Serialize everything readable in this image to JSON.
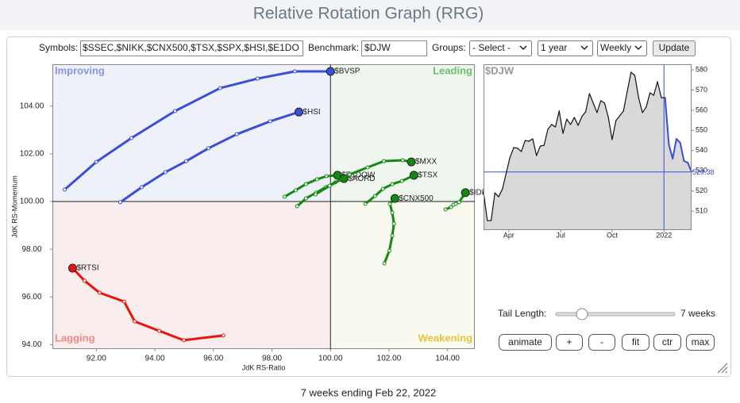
{
  "header": {
    "title": "Relative Rotation Graph (RRG)"
  },
  "form": {
    "symbols_label": "Symbols:",
    "symbols_value": "$SSEC,$NIKK,$CNX500,$TSX,$SPX,$HSI,$E1DO",
    "benchmark_label": "Benchmark:",
    "benchmark_value": "$DJW",
    "groups_label": "Groups:",
    "groups_value": "- Select -",
    "period_value": "1 year",
    "frequency_value": "Weekly",
    "update_button": "Update"
  },
  "chart_data": [
    {
      "type": "scatter",
      "xlabel": "JdK RS-Ratio",
      "ylabel": "JdK RS-Momentum",
      "quadrants": [
        "Improving",
        "Leading",
        "Lagging",
        "Weakening"
      ],
      "quadrant_colors": [
        "#eef0fa",
        "#eef6ed",
        "#f9ecec",
        "#f9f9ef"
      ],
      "quadrant_label_colors": [
        "#8a94e0",
        "#6cbf6c",
        "#f08a8a",
        "#e6c53a"
      ],
      "center": [
        100,
        100
      ],
      "xlim": [
        90.5,
        104.93
      ],
      "ylim": [
        93.82,
        105.75
      ],
      "xticks": [
        {
          "value": 92,
          "label": "92.00"
        },
        {
          "value": 94,
          "label": "94.00"
        },
        {
          "value": 96,
          "label": "96.00"
        },
        {
          "value": 98,
          "label": "98.00"
        },
        {
          "value": 100,
          "label": "100.00"
        },
        {
          "value": 102,
          "label": "102.00"
        },
        {
          "value": 104,
          "label": "104.00"
        }
      ],
      "yticks": [
        {
          "value": 94,
          "label": "94.00"
        },
        {
          "value": 96,
          "label": "96.00"
        },
        {
          "value": 98,
          "label": "98.00"
        },
        {
          "value": 100,
          "label": "100.00"
        },
        {
          "value": 102,
          "label": "102.00"
        },
        {
          "value": 104,
          "label": "104.00"
        }
      ],
      "series": [
        {
          "name": "$BVSP",
          "color": "#3a4fd6",
          "x": [
            90.92,
            92.0,
            93.2,
            94.69,
            96.23,
            97.51,
            98.78,
            100.0
          ],
          "values": [
            100.5,
            101.66,
            102.66,
            103.79,
            104.75,
            105.15,
            105.45,
            105.45
          ]
        },
        {
          "name": "$HSI",
          "color": "#3a4fd6",
          "x": [
            92.82,
            93.55,
            94.36,
            95.07,
            95.83,
            96.8,
            97.94,
            98.92
          ],
          "values": [
            99.97,
            100.6,
            101.23,
            101.69,
            102.23,
            102.82,
            103.36,
            103.75
          ]
        },
        {
          "name": "$RTSI",
          "color": "#e8140c",
          "x": [
            96.34,
            94.99,
            94.15,
            93.31,
            92.95,
            92.11,
            91.6,
            91.19
          ],
          "values": [
            94.39,
            94.19,
            94.58,
            94.98,
            95.81,
            96.18,
            96.68,
            97.21
          ]
        },
        {
          "name": "$E1DOW",
          "color": "#128a12",
          "x": [
            98.43,
            98.81,
            99.16,
            99.54,
            99.86,
            100.24
          ],
          "values": [
            100.2,
            100.47,
            100.73,
            100.93,
            101.06,
            101.1
          ]
        },
        {
          "name": "$AORD",
          "color": "#128a12",
          "x": [
            98.86,
            99.16,
            99.51,
            99.84,
            100.16,
            100.46
          ],
          "values": [
            99.8,
            100.13,
            100.37,
            100.6,
            100.8,
            100.96
          ]
        },
        {
          "name": "$MXX",
          "color": "#128a12",
          "x": [
            99.49,
            99.97,
            100.65,
            101.27,
            101.82,
            102.47,
            102.76
          ],
          "values": [
            100.3,
            100.66,
            101.13,
            101.43,
            101.69,
            101.73,
            101.66
          ]
        },
        {
          "name": "$TSX",
          "color": "#128a12",
          "x": [
            101.19,
            101.52,
            101.79,
            102.11,
            102.44,
            102.85
          ],
          "values": [
            99.9,
            100.23,
            100.53,
            100.73,
            100.86,
            101.1
          ]
        },
        {
          "name": "$CNX500",
          "color": "#128a12",
          "x": [
            101.84,
            102.01,
            102.11,
            102.17,
            102.11,
            102.03,
            102.2
          ],
          "values": [
            97.41,
            97.94,
            98.57,
            99.07,
            99.53,
            99.9,
            100.13
          ]
        },
        {
          "name": "$IDDOW",
          "color": "#128a12",
          "x": [
            103.93,
            104.12,
            104.2,
            104.28,
            104.39,
            104.61
          ],
          "values": [
            99.67,
            99.77,
            99.87,
            99.9,
            99.97,
            100.37
          ]
        }
      ]
    },
    {
      "type": "line",
      "title": "$DJW",
      "color": "#111111",
      "tail_color": "#3a4fd6",
      "tail_length": 7,
      "area_color": "#d9d9d9",
      "xlim": [
        0,
        55
      ],
      "ylim": [
        500.6,
        582.75
      ],
      "xticks": [
        {
          "value": 6.7,
          "label": "Apr"
        },
        {
          "value": 20.4,
          "label": "Jul"
        },
        {
          "value": 34.0,
          "label": "Oct"
        },
        {
          "value": 47.7,
          "label": "2022"
        }
      ],
      "yticks": [
        510,
        520,
        530,
        540,
        550,
        560,
        570,
        580
      ],
      "values": [
        519.4,
        505.3,
        505.3,
        519.0,
        517.1,
        521.0,
        528.9,
        536.7,
        541.5,
        541.1,
        539.5,
        545.0,
        544.6,
        545.8,
        537.5,
        542.2,
        542.6,
        550.5,
        552.9,
        551.7,
        559.6,
        548.5,
        555.6,
        552.9,
        556.4,
        552.5,
        556.8,
        559.2,
        568.2,
        563.5,
        558.8,
        564.7,
        563.5,
        556.4,
        545.4,
        554.8,
        557.2,
        559.6,
        569.4,
        578.8,
        577.2,
        566.2,
        558.8,
        561.5,
        568.6,
        567.4,
        574.1,
        566.2,
        566.2,
        543.0,
        536.0,
        545.8,
        543.8,
        534.8,
        534.0,
        529.38
      ]
    }
  ],
  "controls": {
    "tail_length_label": "Tail Length:",
    "tail_length_value": "7 weeks",
    "buttons": [
      "animate",
      "+",
      "-",
      "fit",
      "ctr",
      "max"
    ]
  },
  "footer": "7 weeks ending Feb 22, 2022"
}
